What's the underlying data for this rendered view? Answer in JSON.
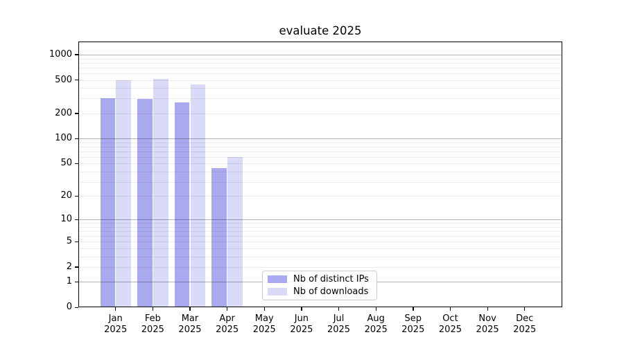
{
  "chart_data": {
    "type": "bar",
    "title": "evaluate 2025",
    "x_tick_months": [
      "Jan",
      "Feb",
      "Mar",
      "Apr",
      "May",
      "Jun",
      "Jul",
      "Aug",
      "Sep",
      "Oct",
      "Nov",
      "Dec"
    ],
    "x_tick_year": "2025",
    "y_axis": {
      "scale": "log-like (position = log10(value+1))",
      "ticks": [
        0,
        1,
        2,
        5,
        10,
        20,
        50,
        100,
        200,
        500,
        1000
      ],
      "range": [
        0,
        1430
      ],
      "grid_major_at": [
        1,
        10,
        100,
        1000
      ],
      "grid_minor_at": [
        2,
        3,
        4,
        5,
        6,
        7,
        8,
        9,
        20,
        30,
        40,
        50,
        60,
        70,
        80,
        90,
        200,
        300,
        400,
        500,
        600,
        700,
        800,
        900
      ]
    },
    "series": [
      {
        "name": "Nb of distinct IPs",
        "color": "#a9a9ef",
        "values": [
          305,
          295,
          270,
          44,
          null,
          null,
          null,
          null,
          null,
          null,
          null,
          null
        ]
      },
      {
        "name": "Nb of downloads",
        "color": "#d9d9f8",
        "values": [
          500,
          520,
          445,
          60,
          null,
          null,
          null,
          null,
          null,
          null,
          null,
          null
        ]
      }
    ],
    "legend": {
      "position": "lower center",
      "entries": [
        "Nb of distinct IPs",
        "Nb of downloads"
      ]
    },
    "layout": {
      "background": "#ffffff",
      "frame_color": "#000000",
      "grid_on": true
    }
  }
}
